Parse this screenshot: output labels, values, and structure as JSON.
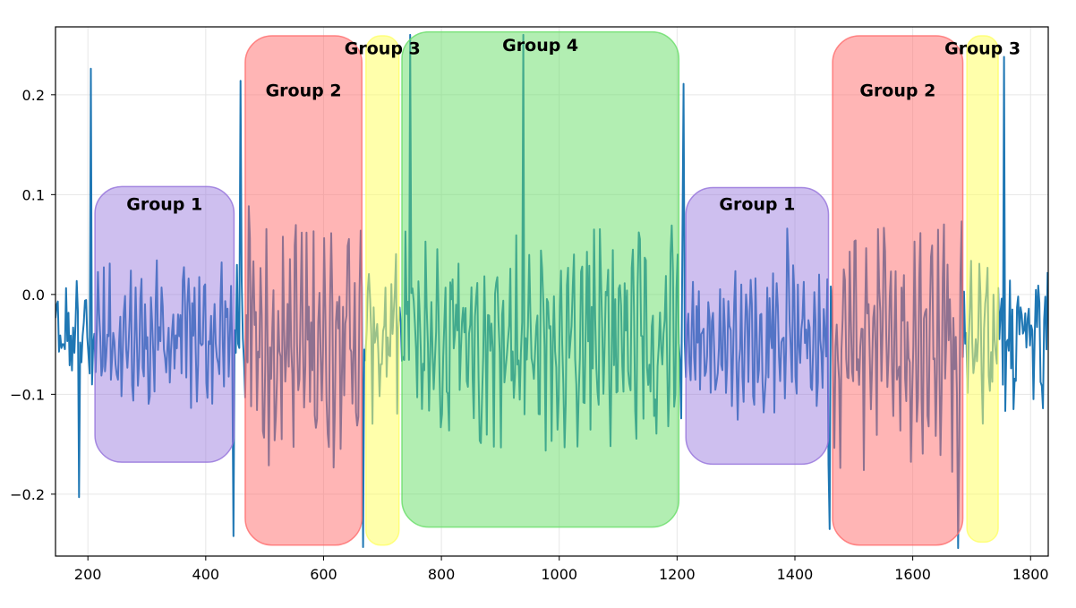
{
  "chart_data": {
    "type": "line",
    "title": "",
    "xlabel": "",
    "ylabel": "",
    "xlim": [
      145,
      1830
    ],
    "ylim": [
      -0.262,
      0.268
    ],
    "grid": true,
    "legend": "none",
    "x_ticks": [
      {
        "value": 200,
        "label": "200"
      },
      {
        "value": 400,
        "label": "400"
      },
      {
        "value": 600,
        "label": "600"
      },
      {
        "value": 800,
        "label": "800"
      },
      {
        "value": 1000,
        "label": "1000"
      },
      {
        "value": 1200,
        "label": "1200"
      },
      {
        "value": 1400,
        "label": "1400"
      },
      {
        "value": 1600,
        "label": "1600"
      },
      {
        "value": 1800,
        "label": "1800"
      }
    ],
    "y_ticks": [
      {
        "value": 0.2,
        "label": "0.2"
      },
      {
        "value": 0.1,
        "label": "0.1"
      },
      {
        "value": 0.0,
        "label": "0.0"
      },
      {
        "value": -0.1,
        "label": "−0.1"
      },
      {
        "value": -0.2,
        "label": "−0.2"
      }
    ],
    "series": [
      {
        "color": "#1f77b4",
        "sample_step": 2,
        "baseline": -0.045,
        "segments": [
          {
            "x0": 145,
            "x1": 212,
            "amplitude": 0.05,
            "period": 16
          },
          {
            "x0": 212,
            "x1": 458,
            "amplitude": 0.065,
            "period": 9
          },
          {
            "x0": 458,
            "x1": 672,
            "amplitude": 0.11,
            "period": 10
          },
          {
            "x0": 672,
            "x1": 733,
            "amplitude": 0.07,
            "period": 14
          },
          {
            "x0": 733,
            "x1": 1208,
            "amplitude": 0.095,
            "period": 11
          },
          {
            "x0": 1208,
            "x1": 1455,
            "amplitude": 0.065,
            "period": 9
          },
          {
            "x0": 1455,
            "x1": 1685,
            "amplitude": 0.11,
            "period": 10
          },
          {
            "x0": 1685,
            "x1": 1742,
            "amplitude": 0.07,
            "period": 14
          },
          {
            "x0": 1742,
            "x1": 1830,
            "amplitude": 0.06,
            "period": 16
          }
        ],
        "spikes": [
          {
            "x": 185,
            "y": -0.203
          },
          {
            "x": 205,
            "y": 0.226
          },
          {
            "x": 460,
            "y": 0.214
          },
          {
            "x": 448,
            "y": -0.242
          },
          {
            "x": 668,
            "y": -0.253
          },
          {
            "x": 748,
            "y": 0.26
          },
          {
            "x": 940,
            "y": 0.26
          },
          {
            "x": 1212,
            "y": 0.211
          },
          {
            "x": 1460,
            "y": -0.235
          },
          {
            "x": 1678,
            "y": -0.254
          },
          {
            "x": 1755,
            "y": 0.238
          }
        ]
      }
    ],
    "regions": [
      {
        "label": "Group 1",
        "x0": 212,
        "x1": 448,
        "y0": -0.168,
        "y1": 0.108,
        "color": "#9370db",
        "opacity": 0.45,
        "label_y": 0.091
      },
      {
        "label": "Group 2",
        "x0": 467,
        "x1": 665,
        "y0": -0.251,
        "y1": 0.259,
        "color": "#ff6b6b",
        "opacity": 0.5,
        "label_y": 0.205
      },
      {
        "label": "Group 3",
        "x0": 672,
        "x1": 728,
        "y0": -0.251,
        "y1": 0.259,
        "color": "#ffff66",
        "opacity": 0.55,
        "label_y": 0.247
      },
      {
        "label": "Group 4",
        "x0": 733,
        "x1": 1203,
        "y0": -0.233,
        "y1": 0.263,
        "color": "#66dd66",
        "opacity": 0.5,
        "label_y": 0.25
      },
      {
        "label": "Group 1",
        "x0": 1215,
        "x1": 1457,
        "y0": -0.17,
        "y1": 0.107,
        "color": "#9370db",
        "opacity": 0.45,
        "label_y": 0.091
      },
      {
        "label": "Group 2",
        "x0": 1464,
        "x1": 1685,
        "y0": -0.251,
        "y1": 0.259,
        "color": "#ff6b6b",
        "opacity": 0.5,
        "label_y": 0.205
      },
      {
        "label": "Group 3",
        "x0": 1692,
        "x1": 1745,
        "y0": -0.248,
        "y1": 0.259,
        "color": "#ffff66",
        "opacity": 0.55,
        "label_y": 0.247
      }
    ]
  }
}
